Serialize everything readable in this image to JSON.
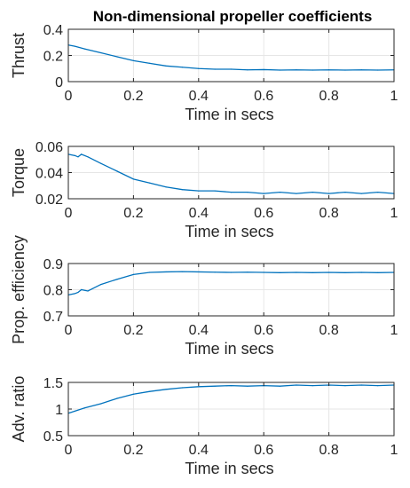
{
  "figure": {
    "title": "Non-dimensional propeller coefficients"
  },
  "style": {
    "line_color": "#0072BD",
    "axis_color": "#262626",
    "grid_color": "#e6e6e6",
    "background": "#ffffff"
  },
  "chart_data": [
    {
      "type": "line",
      "title": "Non-dimensional propeller coefficients",
      "xlabel": "Time in secs",
      "ylabel": "Thrust",
      "xlim": [
        0,
        1
      ],
      "ylim": [
        0,
        0.4
      ],
      "xticks": [
        "0",
        "0.2",
        "0.4",
        "0.6",
        "0.8",
        "1"
      ],
      "yticks": [
        "0",
        "0.2",
        "0.4"
      ],
      "grid": true,
      "series": [
        {
          "x": [
            0,
            0.02,
            0.05,
            0.1,
            0.15,
            0.2,
            0.25,
            0.3,
            0.35,
            0.4,
            0.45,
            0.5,
            0.55,
            0.6,
            0.65,
            0.7,
            0.75,
            0.8,
            0.85,
            0.9,
            0.95,
            1.0
          ],
          "y": [
            0.28,
            0.27,
            0.25,
            0.22,
            0.19,
            0.16,
            0.14,
            0.12,
            0.11,
            0.1,
            0.095,
            0.095,
            0.09,
            0.092,
            0.088,
            0.09,
            0.088,
            0.09,
            0.088,
            0.09,
            0.088,
            0.09
          ]
        }
      ]
    },
    {
      "type": "line",
      "title": "",
      "xlabel": "Time in secs",
      "ylabel": "Torque",
      "xlim": [
        0,
        1
      ],
      "ylim": [
        0.02,
        0.06
      ],
      "xticks": [
        "0",
        "0.2",
        "0.4",
        "0.6",
        "0.8",
        "1"
      ],
      "yticks": [
        "0.02",
        "0.04",
        "0.06"
      ],
      "grid": true,
      "series": [
        {
          "x": [
            0,
            0.02,
            0.03,
            0.04,
            0.06,
            0.1,
            0.15,
            0.2,
            0.25,
            0.3,
            0.35,
            0.4,
            0.45,
            0.5,
            0.55,
            0.6,
            0.65,
            0.7,
            0.75,
            0.8,
            0.85,
            0.9,
            0.95,
            1.0
          ],
          "y": [
            0.054,
            0.053,
            0.052,
            0.054,
            0.052,
            0.047,
            0.041,
            0.035,
            0.032,
            0.029,
            0.027,
            0.026,
            0.026,
            0.025,
            0.025,
            0.024,
            0.025,
            0.024,
            0.025,
            0.024,
            0.025,
            0.024,
            0.025,
            0.024
          ]
        }
      ]
    },
    {
      "type": "line",
      "title": "",
      "xlabel": "Time in secs",
      "ylabel": "Prop. efficiency",
      "xlim": [
        0,
        1
      ],
      "ylim": [
        0.7,
        0.9
      ],
      "xticks": [
        "0",
        "0.2",
        "0.4",
        "0.6",
        "0.8",
        "1"
      ],
      "yticks": [
        "0.7",
        "0.8",
        "0.9"
      ],
      "grid": true,
      "series": [
        {
          "x": [
            0,
            0.02,
            0.03,
            0.04,
            0.06,
            0.1,
            0.15,
            0.2,
            0.25,
            0.3,
            0.35,
            0.4,
            0.45,
            0.5,
            0.55,
            0.6,
            0.65,
            0.7,
            0.75,
            0.8,
            0.85,
            0.9,
            0.95,
            1.0
          ],
          "y": [
            0.78,
            0.785,
            0.79,
            0.8,
            0.795,
            0.82,
            0.84,
            0.858,
            0.866,
            0.868,
            0.869,
            0.868,
            0.867,
            0.866,
            0.867,
            0.866,
            0.865,
            0.866,
            0.865,
            0.866,
            0.865,
            0.866,
            0.865,
            0.866
          ]
        }
      ]
    },
    {
      "type": "line",
      "title": "",
      "xlabel": "Time in secs",
      "ylabel": "Adv. ratio",
      "xlim": [
        0,
        1
      ],
      "ylim": [
        0.5,
        1.5
      ],
      "xticks": [
        "0",
        "0.2",
        "0.4",
        "0.6",
        "0.8",
        "1"
      ],
      "yticks": [
        "0.5",
        "1",
        "1.5"
      ],
      "grid": true,
      "series": [
        {
          "x": [
            0,
            0.02,
            0.05,
            0.1,
            0.15,
            0.2,
            0.25,
            0.3,
            0.35,
            0.4,
            0.45,
            0.5,
            0.55,
            0.6,
            0.65,
            0.7,
            0.75,
            0.8,
            0.85,
            0.9,
            0.95,
            1.0
          ],
          "y": [
            0.92,
            0.96,
            1.02,
            1.1,
            1.2,
            1.28,
            1.33,
            1.37,
            1.4,
            1.42,
            1.43,
            1.44,
            1.43,
            1.44,
            1.43,
            1.45,
            1.44,
            1.45,
            1.44,
            1.45,
            1.44,
            1.45
          ]
        }
      ]
    }
  ]
}
